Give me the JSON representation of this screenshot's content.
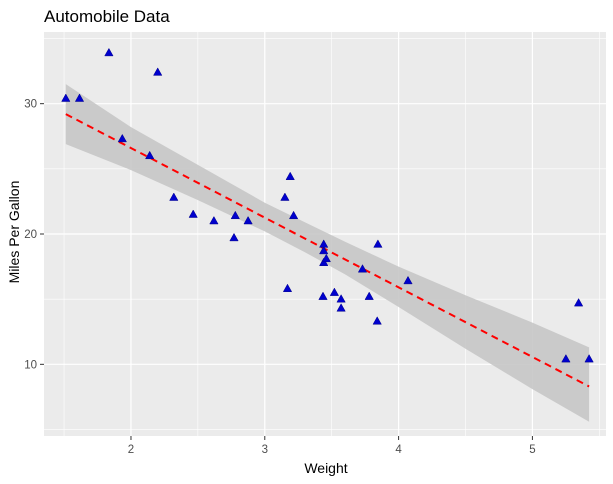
{
  "chart_data": {
    "type": "scatter",
    "title": "Automobile Data",
    "xlabel": "Weight",
    "ylabel": "Miles Per Gallon",
    "xlim": [
      1.35,
      5.55
    ],
    "ylim": [
      4.5,
      35.5
    ],
    "x_ticks": [
      2,
      3,
      4,
      5
    ],
    "y_ticks": [
      10,
      20,
      30
    ],
    "grid": true,
    "legend": "none",
    "colors": {
      "points": "#0000cd",
      "trend": "#ff0000",
      "band": "#c6c6c6",
      "panel": "#ebebeb",
      "grid": "#ffffff"
    },
    "series": [
      {
        "points": [
          [
            1.513,
            30.4
          ],
          [
            1.615,
            30.4
          ],
          [
            1.835,
            33.9
          ],
          [
            1.935,
            27.3
          ],
          [
            2.14,
            26.0
          ],
          [
            2.2,
            32.4
          ],
          [
            2.32,
            22.8
          ],
          [
            2.465,
            21.5
          ],
          [
            2.62,
            21.0
          ],
          [
            2.77,
            19.7
          ],
          [
            2.78,
            21.4
          ],
          [
            2.875,
            21.0
          ],
          [
            3.15,
            22.8
          ],
          [
            3.17,
            15.8
          ],
          [
            3.19,
            24.4
          ],
          [
            3.215,
            21.4
          ],
          [
            3.435,
            15.2
          ],
          [
            3.44,
            18.7
          ],
          [
            3.44,
            19.2
          ],
          [
            3.44,
            17.8
          ],
          [
            3.46,
            18.1
          ],
          [
            3.52,
            15.5
          ],
          [
            3.57,
            15.0
          ],
          [
            3.57,
            14.3
          ],
          [
            3.73,
            17.3
          ],
          [
            3.78,
            15.2
          ],
          [
            3.84,
            13.3
          ],
          [
            3.845,
            19.2
          ],
          [
            4.07,
            16.4
          ],
          [
            5.25,
            10.4
          ],
          [
            5.345,
            14.7
          ],
          [
            5.424,
            10.4
          ]
        ]
      }
    ],
    "trend_line": {
      "style": "dashed",
      "x": [
        1.513,
        5.424
      ],
      "y": [
        29.2,
        8.3
      ]
    },
    "confidence_band": {
      "x": [
        1.513,
        2.0,
        2.5,
        3.0,
        3.3,
        3.6,
        4.0,
        4.5,
        5.0,
        5.424
      ],
      "upper": [
        31.5,
        28.2,
        25.3,
        22.4,
        20.9,
        19.4,
        17.5,
        15.3,
        13.2,
        11.3
      ],
      "lower": [
        26.9,
        24.9,
        22.6,
        20.2,
        18.6,
        16.9,
        14.4,
        11.2,
        8.1,
        5.6
      ]
    }
  }
}
